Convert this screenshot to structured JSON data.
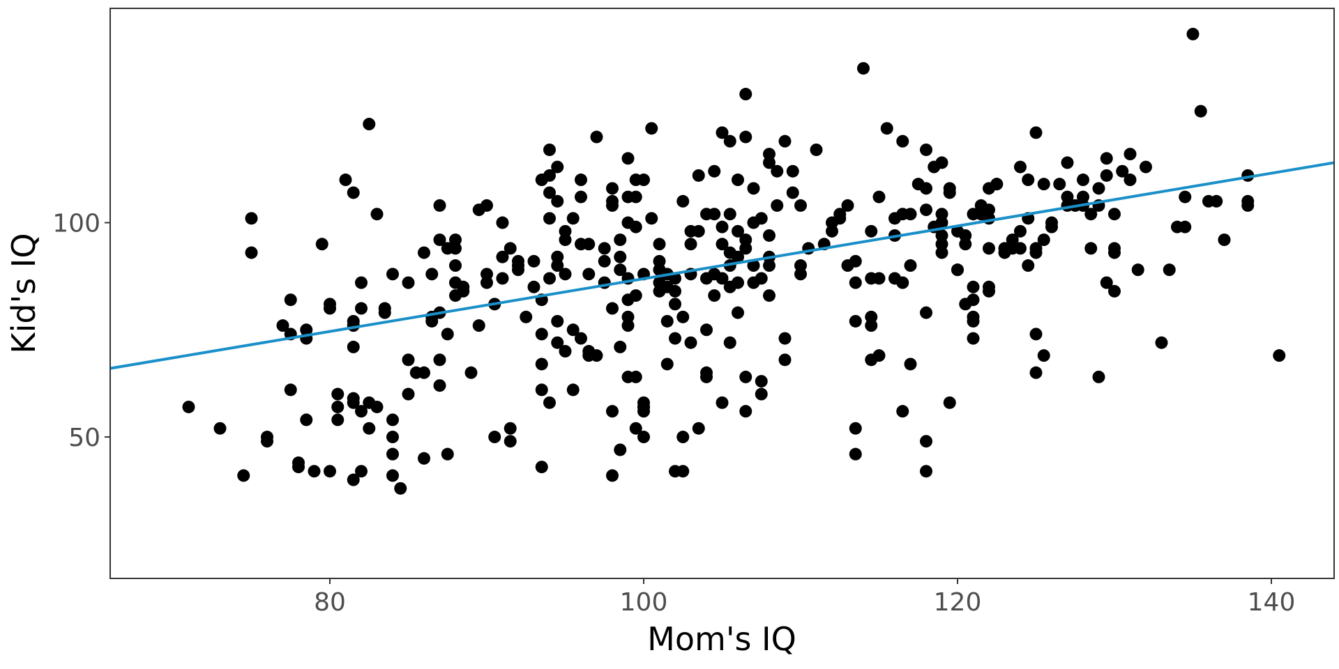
{
  "chart_data": {
    "type": "scatter",
    "title": "",
    "xlabel": "Mom's IQ",
    "ylabel": "Kid's IQ",
    "xlim": [
      66,
      144
    ],
    "ylim": [
      17,
      150
    ],
    "x_ticks": [
      80,
      100,
      120,
      140
    ],
    "y_ticks": [
      50,
      100
    ],
    "x_tick_labels": [
      "80",
      "100",
      "120",
      "140"
    ],
    "y_tick_labels": [
      "50",
      "100"
    ],
    "grid": false,
    "legend": "none",
    "point_color": "#000000",
    "line_color": "#1a8fc8",
    "regression_line": {
      "x": [
        66,
        144
      ],
      "y": [
        66,
        114
      ]
    },
    "points": [
      [
        71,
        57
      ],
      [
        73,
        52
      ],
      [
        74.5,
        41
      ],
      [
        75,
        101
      ],
      [
        75,
        93
      ],
      [
        76,
        50
      ],
      [
        76,
        49
      ],
      [
        77,
        76
      ],
      [
        77.5,
        82
      ],
      [
        77.5,
        61
      ],
      [
        77.5,
        74
      ],
      [
        78,
        44
      ],
      [
        78,
        43
      ],
      [
        78.5,
        54
      ],
      [
        78.5,
        75
      ],
      [
        78.5,
        73
      ],
      [
        79,
        42
      ],
      [
        79.5,
        95
      ],
      [
        80,
        81
      ],
      [
        80,
        80
      ],
      [
        80,
        42
      ],
      [
        80.5,
        60
      ],
      [
        80.5,
        54
      ],
      [
        80.5,
        57
      ],
      [
        81,
        110
      ],
      [
        81.5,
        107
      ],
      [
        81.5,
        58
      ],
      [
        81.5,
        77
      ],
      [
        81.5,
        76
      ],
      [
        81.5,
        71
      ],
      [
        81.5,
        59
      ],
      [
        81.5,
        40
      ],
      [
        82,
        86
      ],
      [
        82,
        80
      ],
      [
        82,
        42
      ],
      [
        82,
        56
      ],
      [
        82.5,
        123
      ],
      [
        82.5,
        58
      ],
      [
        82.5,
        52
      ],
      [
        83,
        57
      ],
      [
        83,
        102
      ],
      [
        83.5,
        80
      ],
      [
        83.5,
        79
      ],
      [
        84,
        88
      ],
      [
        84,
        54
      ],
      [
        84,
        50
      ],
      [
        84,
        46
      ],
      [
        84,
        41
      ],
      [
        84.5,
        38
      ],
      [
        85,
        68
      ],
      [
        85,
        86
      ],
      [
        85,
        60
      ],
      [
        85.5,
        65
      ],
      [
        86,
        93
      ],
      [
        86,
        65
      ],
      [
        86,
        45
      ],
      [
        86.5,
        78
      ],
      [
        86.5,
        77
      ],
      [
        86.5,
        88
      ],
      [
        87,
        62
      ],
      [
        87,
        68
      ],
      [
        87,
        96
      ],
      [
        87,
        79
      ],
      [
        87,
        104
      ],
      [
        87.5,
        94
      ],
      [
        87.5,
        46
      ],
      [
        87.5,
        74
      ],
      [
        88,
        86
      ],
      [
        88,
        90
      ],
      [
        88,
        96
      ],
      [
        88,
        94
      ],
      [
        88,
        83
      ],
      [
        88.5,
        85
      ],
      [
        88.5,
        84
      ],
      [
        89,
        65
      ],
      [
        89.5,
        76
      ],
      [
        89.5,
        103
      ],
      [
        90,
        104
      ],
      [
        90,
        86
      ],
      [
        90,
        88
      ],
      [
        90.5,
        50
      ],
      [
        90.5,
        81
      ],
      [
        91,
        87
      ],
      [
        91,
        92
      ],
      [
        91,
        100
      ],
      [
        91.5,
        94
      ],
      [
        91.5,
        52
      ],
      [
        91.5,
        49
      ],
      [
        92,
        90
      ],
      [
        92,
        91
      ],
      [
        92,
        89
      ],
      [
        92.5,
        78
      ],
      [
        93,
        91
      ],
      [
        93,
        85
      ],
      [
        93.5,
        67
      ],
      [
        93.5,
        74
      ],
      [
        93.5,
        82
      ],
      [
        93.5,
        61
      ],
      [
        93.5,
        43
      ],
      [
        93.5,
        110
      ],
      [
        94,
        107
      ],
      [
        94,
        58
      ],
      [
        94,
        111
      ],
      [
        94,
        87
      ],
      [
        94,
        101
      ],
      [
        94,
        117
      ],
      [
        94.5,
        72
      ],
      [
        94.5,
        113
      ],
      [
        94.5,
        92
      ],
      [
        94.5,
        90
      ],
      [
        94.5,
        105
      ],
      [
        94.5,
        77
      ],
      [
        95,
        88
      ],
      [
        95,
        96
      ],
      [
        95,
        98
      ],
      [
        95,
        70
      ],
      [
        95.5,
        61
      ],
      [
        95.5,
        75
      ],
      [
        95.5,
        101
      ],
      [
        96,
        106
      ],
      [
        96,
        110
      ],
      [
        96,
        95
      ],
      [
        96,
        73
      ],
      [
        96.5,
        70
      ],
      [
        96.5,
        88
      ],
      [
        96.5,
        95
      ],
      [
        96.5,
        69
      ],
      [
        97,
        69
      ],
      [
        97,
        120
      ],
      [
        97.5,
        91
      ],
      [
        97.5,
        94
      ],
      [
        97.5,
        86
      ],
      [
        98,
        105
      ],
      [
        98,
        108
      ],
      [
        98,
        80
      ],
      [
        98,
        41
      ],
      [
        98,
        56
      ],
      [
        98,
        104
      ],
      [
        98.5,
        47
      ],
      [
        98.5,
        92
      ],
      [
        98.5,
        89
      ],
      [
        98.5,
        71
      ],
      [
        98.5,
        96
      ],
      [
        99,
        82
      ],
      [
        99,
        100
      ],
      [
        99,
        106
      ],
      [
        99,
        115
      ],
      [
        99,
        64
      ],
      [
        99,
        76
      ],
      [
        99,
        87
      ],
      [
        99,
        78
      ],
      [
        99.5,
        64
      ],
      [
        99.5,
        99
      ],
      [
        99.5,
        110
      ],
      [
        99.5,
        106
      ],
      [
        99.5,
        52
      ],
      [
        99.5,
        83
      ],
      [
        100,
        56
      ],
      [
        100,
        50
      ],
      [
        100,
        57
      ],
      [
        100,
        58
      ],
      [
        100,
        57
      ],
      [
        100,
        110
      ],
      [
        100,
        88
      ],
      [
        100.5,
        122
      ],
      [
        100.5,
        101
      ],
      [
        101,
        89
      ],
      [
        101,
        84
      ],
      [
        101,
        91
      ],
      [
        101,
        95
      ],
      [
        101,
        86
      ],
      [
        101,
        89
      ],
      [
        101.5,
        85
      ],
      [
        101.5,
        77
      ],
      [
        101.5,
        67
      ],
      [
        101.5,
        88
      ],
      [
        102,
        81
      ],
      [
        102,
        73
      ],
      [
        102,
        87
      ],
      [
        102,
        84
      ],
      [
        102,
        42
      ],
      [
        102.5,
        42
      ],
      [
        102.5,
        50
      ],
      [
        102.5,
        78
      ],
      [
        102.5,
        105
      ],
      [
        103,
        95
      ],
      [
        103,
        98
      ],
      [
        103,
        88
      ],
      [
        103,
        72
      ],
      [
        103.5,
        111
      ],
      [
        103.5,
        52
      ],
      [
        103.5,
        98
      ],
      [
        104,
        65
      ],
      [
        104,
        102
      ],
      [
        104,
        75
      ],
      [
        104,
        64
      ],
      [
        104,
        87
      ],
      [
        104.5,
        83
      ],
      [
        104.5,
        88
      ],
      [
        104.5,
        112
      ],
      [
        104.5,
        102
      ],
      [
        105,
        121
      ],
      [
        105,
        99
      ],
      [
        105,
        87
      ],
      [
        105,
        58
      ],
      [
        105,
        95
      ],
      [
        105.5,
        102
      ],
      [
        105.5,
        85
      ],
      [
        105.5,
        119
      ],
      [
        105.5,
        93
      ],
      [
        105.5,
        90
      ],
      [
        105.5,
        72
      ],
      [
        106,
        98
      ],
      [
        106,
        110
      ],
      [
        106,
        86
      ],
      [
        106,
        79
      ],
      [
        106,
        92
      ],
      [
        106.5,
        56
      ],
      [
        106.5,
        64
      ],
      [
        106.5,
        130
      ],
      [
        106.5,
        120
      ],
      [
        106.5,
        96
      ],
      [
        106.5,
        94
      ],
      [
        107,
        108
      ],
      [
        107,
        100
      ],
      [
        107,
        86
      ],
      [
        107,
        90
      ],
      [
        107.5,
        87
      ],
      [
        107.5,
        101
      ],
      [
        107.5,
        63
      ],
      [
        107.5,
        60
      ],
      [
        108,
        90
      ],
      [
        108,
        97
      ],
      [
        108,
        92
      ],
      [
        108,
        83
      ],
      [
        108,
        114
      ],
      [
        108,
        116
      ],
      [
        108.5,
        104
      ],
      [
        108.5,
        112
      ],
      [
        109,
        73
      ],
      [
        109,
        68
      ],
      [
        109,
        119
      ],
      [
        109.5,
        107
      ],
      [
        109.5,
        112
      ],
      [
        110,
        90
      ],
      [
        110,
        88
      ],
      [
        110,
        104
      ],
      [
        110.5,
        94
      ],
      [
        111,
        117
      ],
      [
        111.5,
        95
      ],
      [
        112,
        98
      ],
      [
        112,
        100
      ],
      [
        112.5,
        101
      ],
      [
        112.5,
        102
      ],
      [
        113,
        104
      ],
      [
        113,
        90
      ],
      [
        113.5,
        91
      ],
      [
        113.5,
        86
      ],
      [
        113.5,
        77
      ],
      [
        113.5,
        52
      ],
      [
        113.5,
        46
      ],
      [
        114,
        136
      ],
      [
        114.5,
        98
      ],
      [
        114.5,
        68
      ],
      [
        114.5,
        87
      ],
      [
        114.5,
        76
      ],
      [
        114.5,
        78
      ],
      [
        115,
        106
      ],
      [
        115,
        87
      ],
      [
        115,
        69
      ],
      [
        115.5,
        122
      ],
      [
        116,
        101
      ],
      [
        116,
        87
      ],
      [
        116,
        97
      ],
      [
        116.5,
        56
      ],
      [
        116.5,
        102
      ],
      [
        116.5,
        86
      ],
      [
        116.5,
        119
      ],
      [
        117,
        102
      ],
      [
        117,
        67
      ],
      [
        117,
        90
      ],
      [
        117.5,
        109
      ],
      [
        118,
        103
      ],
      [
        118,
        108
      ],
      [
        118,
        117
      ],
      [
        118,
        79
      ],
      [
        118,
        49
      ],
      [
        118,
        42
      ],
      [
        118.5,
        99
      ],
      [
        118.5,
        113
      ],
      [
        119,
        95
      ],
      [
        119,
        93
      ],
      [
        119,
        114
      ],
      [
        119,
        100
      ],
      [
        119,
        102
      ],
      [
        119,
        97
      ],
      [
        119.5,
        58
      ],
      [
        119.5,
        107
      ],
      [
        119.5,
        108
      ],
      [
        120,
        98
      ],
      [
        120,
        89
      ],
      [
        120,
        89
      ],
      [
        120.5,
        81
      ],
      [
        120.5,
        97
      ],
      [
        120.5,
        95
      ],
      [
        121,
        102
      ],
      [
        121,
        85
      ],
      [
        121,
        82
      ],
      [
        121,
        78
      ],
      [
        121,
        73
      ],
      [
        121,
        77
      ],
      [
        121.5,
        102
      ],
      [
        121.5,
        104
      ],
      [
        122,
        94
      ],
      [
        122,
        84
      ],
      [
        122,
        85
      ],
      [
        122,
        103
      ],
      [
        122,
        108
      ],
      [
        122,
        101
      ],
      [
        122.5,
        109
      ],
      [
        122.5,
        109
      ],
      [
        123,
        94
      ],
      [
        123,
        93
      ],
      [
        123.5,
        96
      ],
      [
        123.5,
        94
      ],
      [
        124,
        94
      ],
      [
        124,
        98
      ],
      [
        124,
        113
      ],
      [
        124.5,
        110
      ],
      [
        124.5,
        90
      ],
      [
        124.5,
        101
      ],
      [
        125,
        74
      ],
      [
        125,
        65
      ],
      [
        125,
        121
      ],
      [
        125,
        93
      ],
      [
        125,
        94
      ],
      [
        125.5,
        109
      ],
      [
        125.5,
        96
      ],
      [
        125.5,
        69
      ],
      [
        126,
        100
      ],
      [
        126,
        99
      ],
      [
        126.5,
        109
      ],
      [
        127,
        106
      ],
      [
        127,
        104
      ],
      [
        127,
        114
      ],
      [
        127.5,
        104
      ],
      [
        128,
        106
      ],
      [
        128,
        110
      ],
      [
        128,
        104
      ],
      [
        128.5,
        102
      ],
      [
        128.5,
        94
      ],
      [
        129,
        108
      ],
      [
        129,
        104
      ],
      [
        129,
        64
      ],
      [
        129.5,
        115
      ],
      [
        129.5,
        111
      ],
      [
        129.5,
        86
      ],
      [
        130,
        84
      ],
      [
        130,
        94
      ],
      [
        130,
        102
      ],
      [
        130,
        93
      ],
      [
        130.5,
        112
      ],
      [
        131,
        116
      ],
      [
        131,
        110
      ],
      [
        131.5,
        89
      ],
      [
        132,
        113
      ],
      [
        133,
        72
      ],
      [
        133.5,
        89
      ],
      [
        134,
        99
      ],
      [
        134.5,
        106
      ],
      [
        134.5,
        99
      ],
      [
        135,
        144
      ],
      [
        135.5,
        126
      ],
      [
        136,
        105
      ],
      [
        136.5,
        105
      ],
      [
        137,
        96
      ],
      [
        138.5,
        111
      ],
      [
        138.5,
        105
      ],
      [
        138.5,
        104
      ],
      [
        140.5,
        69
      ]
    ]
  }
}
